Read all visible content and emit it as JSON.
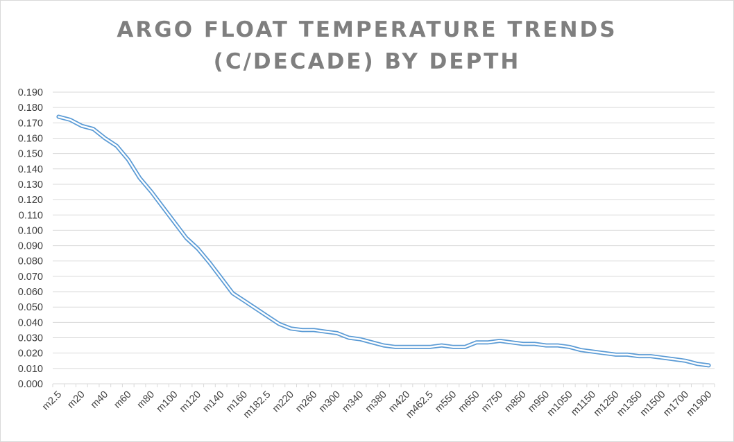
{
  "chart_data": {
    "type": "line",
    "title": "ARGO FLOAT TEMPERATURE TRENDS (C/DECADE) BY DEPTH",
    "title_lines": [
      "ARGO FLOAT TEMPERATURE TRENDS",
      "(C/DECADE) BY DEPTH"
    ],
    "xlabel": "",
    "ylabel": "",
    "ylim": [
      0,
      0.19
    ],
    "ytick_step": 0.01,
    "grid": "horizontal",
    "legend": "none",
    "x": [
      "m2.5",
      "m10",
      "m20",
      "m30",
      "m40",
      "m50",
      "m60",
      "m70",
      "m80",
      "m90",
      "m100",
      "m110",
      "m120",
      "m130",
      "m140",
      "m150",
      "m160",
      "m170",
      "m182.5",
      "m200",
      "m220",
      "m240",
      "m260",
      "m280",
      "m300",
      "m320",
      "m340",
      "m360",
      "m380",
      "m400",
      "m420",
      "m440",
      "m462.5",
      "m500",
      "m550",
      "m600",
      "m650",
      "m700",
      "m750",
      "m800",
      "m850",
      "m900",
      "m950",
      "m1000",
      "m1050",
      "m1100",
      "m1150",
      "m1200",
      "m1250",
      "m1300",
      "m1350",
      "m1400",
      "m1500",
      "m1600",
      "m1700",
      "m1800",
      "m1900"
    ],
    "x_labels_shown": [
      "m2.5",
      "m20",
      "m40",
      "m60",
      "m80",
      "m100",
      "m120",
      "m140",
      "m160",
      "m182.5",
      "m220",
      "m260",
      "m300",
      "m340",
      "m380",
      "m420",
      "m462.5",
      "m550",
      "m650",
      "m750",
      "m850",
      "m950",
      "m1050",
      "m1150",
      "m1250",
      "m1350",
      "m1500",
      "m1700",
      "m1900"
    ],
    "series": [
      {
        "values": [
          0.174,
          0.172,
          0.168,
          0.166,
          0.16,
          0.155,
          0.146,
          0.134,
          0.125,
          0.115,
          0.105,
          0.095,
          0.088,
          0.079,
          0.069,
          0.059,
          0.054,
          0.049,
          0.044,
          0.039,
          0.036,
          0.035,
          0.035,
          0.034,
          0.033,
          0.03,
          0.029,
          0.027,
          0.025,
          0.024,
          0.024,
          0.024,
          0.024,
          0.025,
          0.024,
          0.024,
          0.027,
          0.027,
          0.028,
          0.027,
          0.026,
          0.026,
          0.025,
          0.025,
          0.024,
          0.022,
          0.021,
          0.02,
          0.019,
          0.019,
          0.018,
          0.018,
          0.017,
          0.016,
          0.015,
          0.013,
          0.012
        ]
      }
    ],
    "line_color": "#5b9bd5",
    "axis_color": "#d9d9d9",
    "text_color": "#404040",
    "title_color": "#7f7f7f"
  }
}
